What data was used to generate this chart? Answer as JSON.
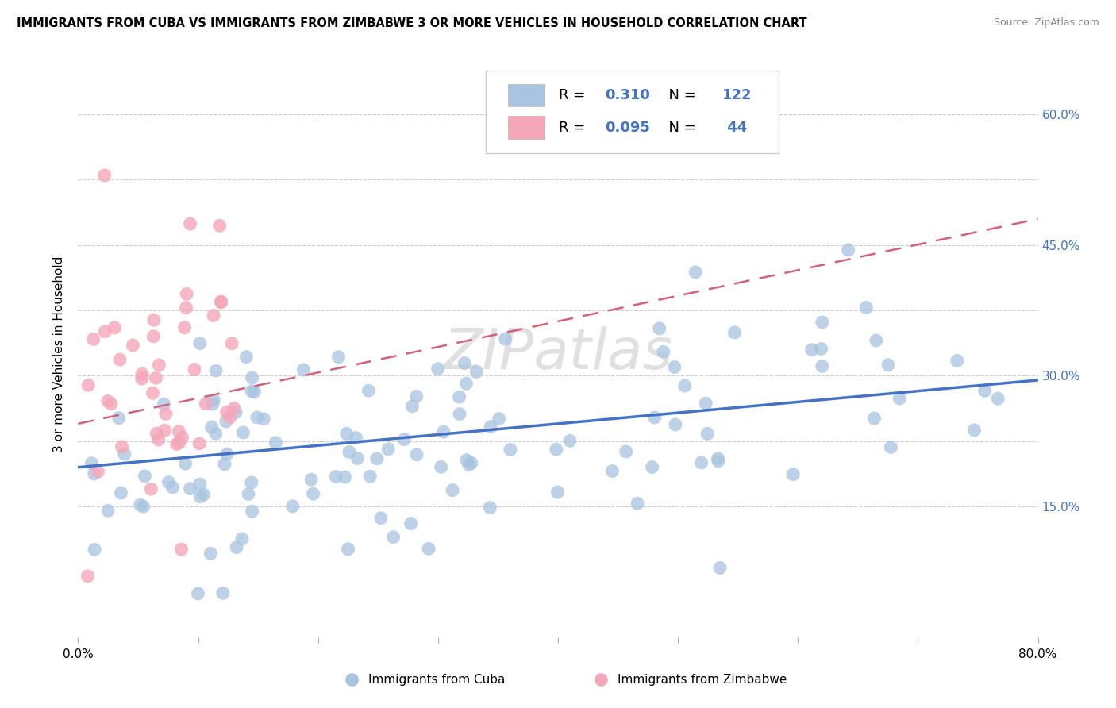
{
  "title": "IMMIGRANTS FROM CUBA VS IMMIGRANTS FROM ZIMBABWE 3 OR MORE VEHICLES IN HOUSEHOLD CORRELATION CHART",
  "source": "Source: ZipAtlas.com",
  "ylabel": "3 or more Vehicles in Household",
  "xlim": [
    0.0,
    0.8
  ],
  "ylim": [
    0.0,
    0.65
  ],
  "x_tick_positions": [
    0.0,
    0.1,
    0.2,
    0.3,
    0.4,
    0.5,
    0.6,
    0.7,
    0.8
  ],
  "x_tick_labels": [
    "0.0%",
    "",
    "",
    "",
    "",
    "",
    "",
    "",
    "80.0%"
  ],
  "y_tick_positions": [
    0.0,
    0.15,
    0.225,
    0.3,
    0.375,
    0.45,
    0.525,
    0.6
  ],
  "y_tick_labels_right": [
    "",
    "15.0%",
    "",
    "30.0%",
    "",
    "45.0%",
    "",
    "60.0%"
  ],
  "cuba_color": "#a8c4e0",
  "cuba_color_line": "#4472c4",
  "zimbabwe_color": "#f4a7b9",
  "zimbabwe_color_line": "#d4607a",
  "cuba_R": 0.31,
  "cuba_N": 122,
  "zimbabwe_R": 0.095,
  "zimbabwe_N": 44,
  "blue_text_color": "#4472c4",
  "watermark": "ZIPatlas",
  "cuba_line_x0": 0.0,
  "cuba_line_y0": 0.195,
  "cuba_line_x1": 0.8,
  "cuba_line_y1": 0.295,
  "zim_line_x0": 0.0,
  "zim_line_y0": 0.245,
  "zim_line_x1": 0.8,
  "zim_line_y1": 0.48
}
